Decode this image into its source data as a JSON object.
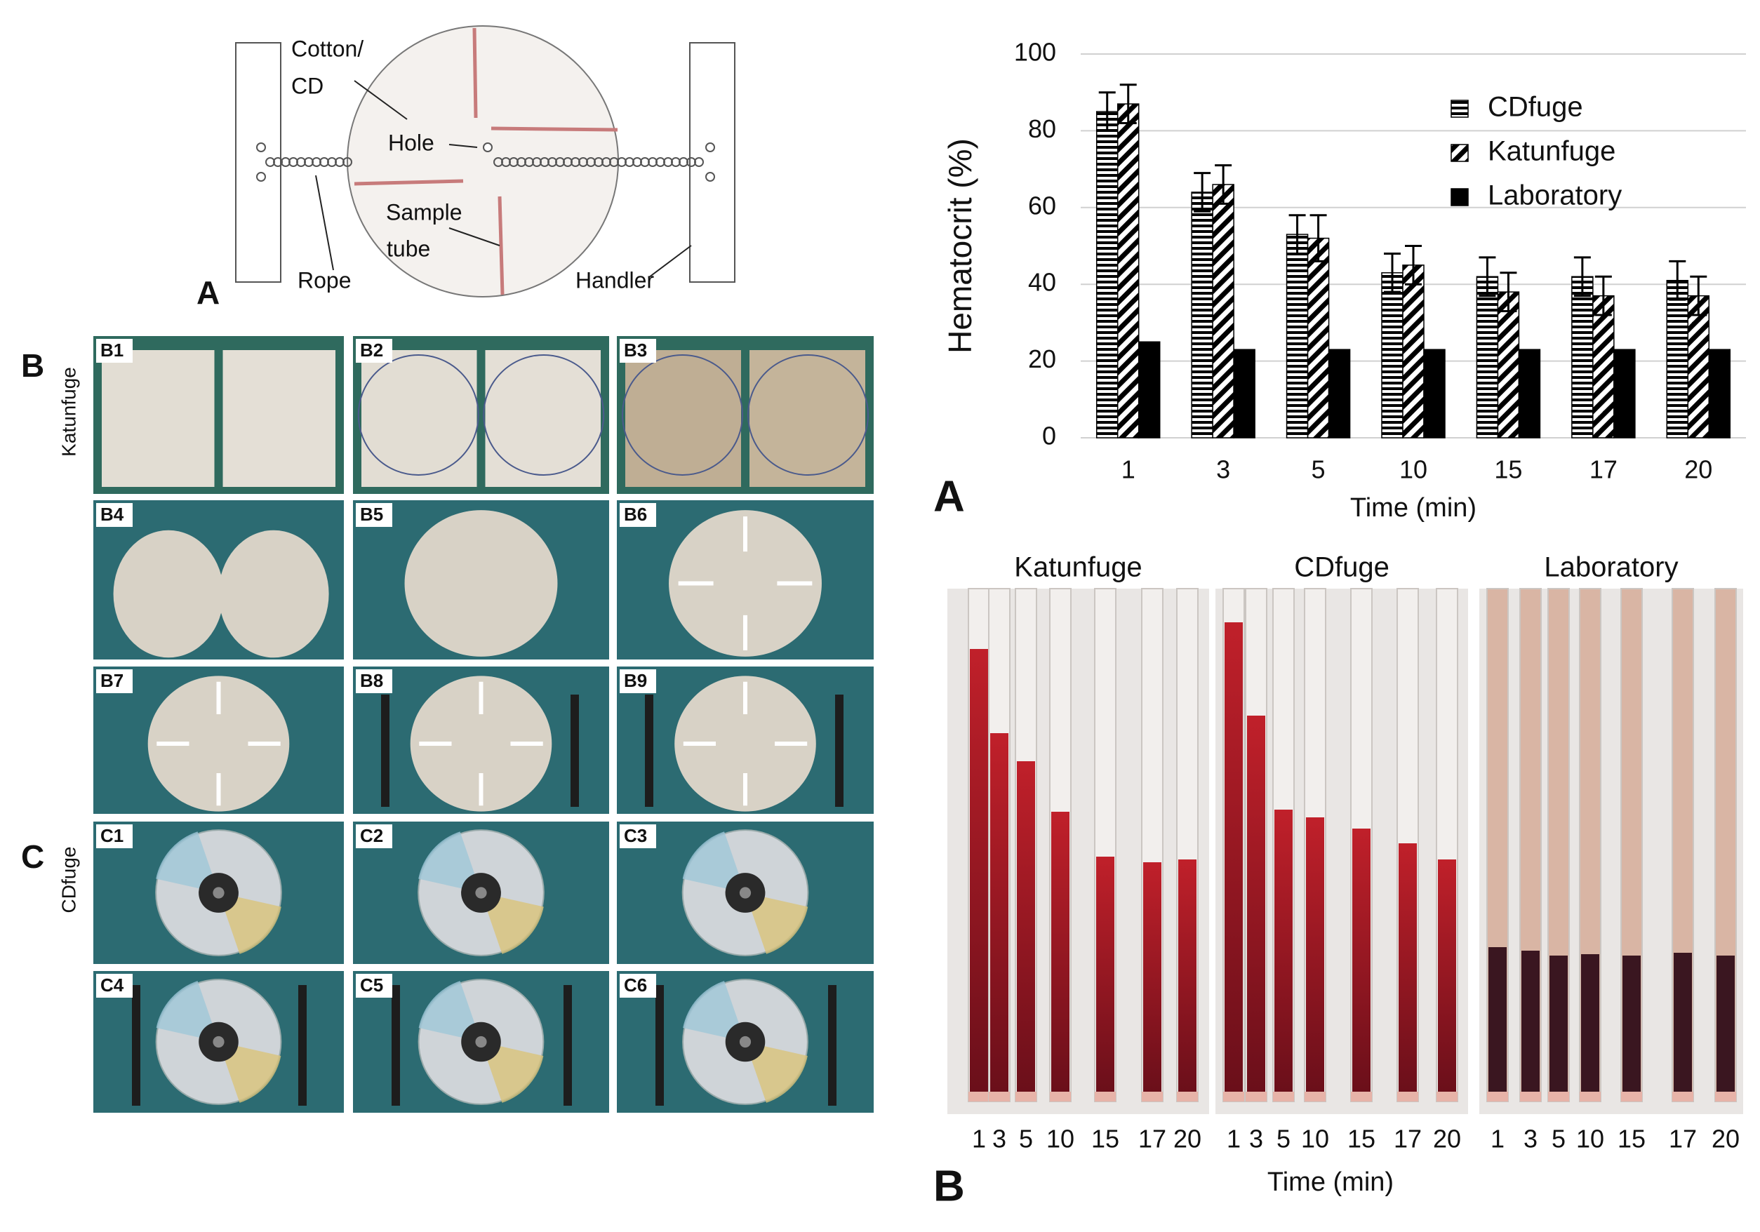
{
  "figure": {
    "diagram": {
      "panel": "A",
      "cotton": [
        "Cotton/",
        "CD"
      ],
      "hole": "Hole",
      "sample_tube": [
        "Sample",
        "tube"
      ],
      "rope": "Rope",
      "handler": "Handler"
    },
    "photos": {
      "panel_b": "B",
      "panel_c": "C",
      "katunfuge": "Katunfuge",
      "cdfuge": "CDfuge",
      "cells": [
        "B1",
        "B2",
        "B3",
        "B4",
        "B5",
        "B6",
        "B7",
        "B8",
        "B9",
        "C1",
        "C2",
        "C3",
        "C4",
        "C5",
        "C6"
      ]
    },
    "tubes": {
      "panel": "B",
      "x_label": "Time (min)",
      "groups": [
        {
          "title": "Katunfuge",
          "labels": [
            "1",
            "3",
            "5",
            "10",
            "15",
            "17",
            "20"
          ]
        },
        {
          "title": "CDfuge",
          "labels": [
            "1",
            "3",
            "5",
            "10",
            "15",
            "17",
            "20"
          ]
        },
        {
          "title": "Laboratory",
          "labels": [
            "1",
            "3",
            "5",
            "10",
            "15",
            "17",
            "20"
          ]
        }
      ]
    }
  },
  "chart_data": {
    "type": "bar",
    "panel": "A",
    "y_label": "Hematocrit (%)",
    "x_label": "Time (min)",
    "categories": [
      "1",
      "3",
      "5",
      "10",
      "15",
      "17",
      "20"
    ],
    "series": [
      {
        "name": "CDfuge",
        "color": "#000000",
        "hatch": "horizontal",
        "values": [
          85,
          64,
          53,
          43,
          42,
          42,
          41
        ],
        "errors": [
          5,
          5,
          5,
          5,
          5,
          5,
          5
        ]
      },
      {
        "name": "Katunfuge",
        "color": "#000000",
        "hatch": "diagonal",
        "values": [
          87,
          66,
          52,
          45,
          38,
          37,
          37
        ],
        "errors": [
          5,
          5,
          6,
          5,
          5,
          5,
          5
        ]
      },
      {
        "name": "Laboratory",
        "color": "#000000",
        "hatch": "solid",
        "values": [
          25,
          23,
          23,
          23,
          23,
          23,
          23
        ]
      }
    ],
    "ylim": [
      0,
      100
    ],
    "yticks": [
      0,
      20,
      40,
      60,
      80,
      100
    ],
    "grid": true,
    "legend": "top-right"
  }
}
